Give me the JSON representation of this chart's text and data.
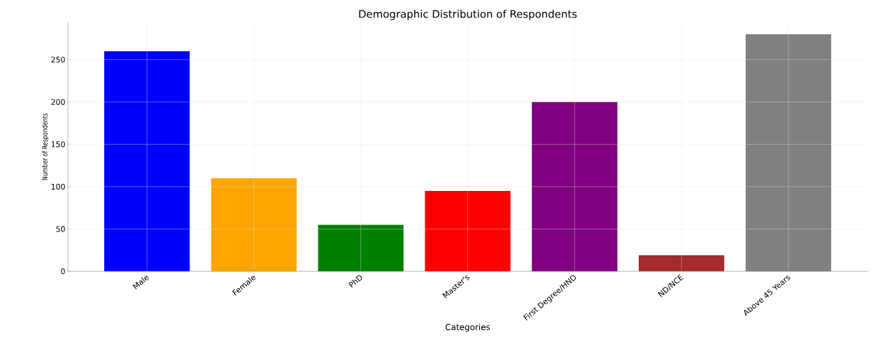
{
  "chart_data": {
    "type": "bar",
    "title": "Demographic Distribution of Respondents",
    "xlabel": "Categories",
    "ylabel": "Number of Respondents",
    "categories": [
      "Male",
      "Female",
      "PhD",
      "Master's",
      "First Degree/HND",
      "ND/NCE",
      "Above 45 Years"
    ],
    "values": [
      260,
      110,
      55,
      95,
      200,
      19,
      280
    ],
    "colors": [
      "#0000ff",
      "#ffa500",
      "#008000",
      "#ff0000",
      "#800080",
      "#a52a2a",
      "#808080"
    ],
    "ylim": [
      0,
      294
    ],
    "yticks": [
      0,
      50,
      100,
      150,
      200,
      250
    ],
    "grid": true
  }
}
